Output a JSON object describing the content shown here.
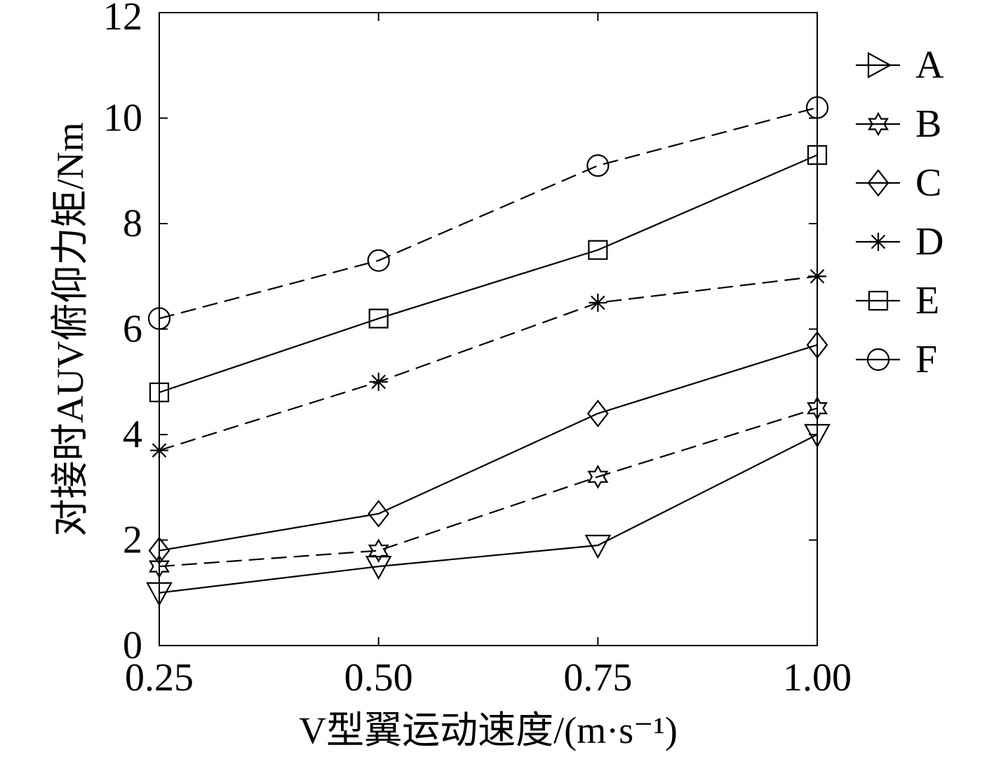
{
  "chart_data": {
    "type": "line",
    "x": [
      0.25,
      0.5,
      0.75,
      1.0
    ],
    "x_tick_labels": [
      "0.25",
      "0.50",
      "0.75",
      "1.00"
    ],
    "y_ticks": [
      0,
      2,
      4,
      6,
      8,
      10,
      12
    ],
    "y_tick_labels": [
      "0",
      "2",
      "4",
      "6",
      "8",
      "10",
      "12"
    ],
    "xlabel": "V型翼运动速度/(m·s⁻¹)",
    "ylabel": "对接时AUV俯仰力矩/Nm",
    "xlim": [
      0.25,
      1.0
    ],
    "ylim": [
      0,
      12
    ],
    "grid": false,
    "legend": "outside-right",
    "series": [
      {
        "name": "A",
        "marker": "triangle-down",
        "legend_marker": "triangle-right",
        "line": "solid",
        "color": "#000000",
        "values": [
          1.0,
          1.5,
          1.9,
          4.0
        ]
      },
      {
        "name": "B",
        "marker": "hexagram",
        "legend_marker": "hexagram",
        "line": "dashed",
        "color": "#000000",
        "values": [
          1.5,
          1.8,
          3.2,
          4.5
        ]
      },
      {
        "name": "C",
        "marker": "diamond",
        "legend_marker": "diamond",
        "line": "solid",
        "color": "#000000",
        "values": [
          1.8,
          2.5,
          4.4,
          5.7
        ]
      },
      {
        "name": "D",
        "marker": "asterisk",
        "legend_marker": "asterisk",
        "line": "dashed",
        "color": "#000000",
        "values": [
          3.7,
          5.0,
          6.5,
          7.0
        ]
      },
      {
        "name": "E",
        "marker": "square",
        "legend_marker": "square",
        "line": "solid",
        "color": "#000000",
        "values": [
          4.8,
          6.2,
          7.5,
          9.3
        ]
      },
      {
        "name": "F",
        "marker": "circle",
        "legend_marker": "circle",
        "line": "dashed",
        "color": "#000000",
        "values": [
          6.2,
          7.3,
          9.1,
          10.2
        ]
      }
    ]
  }
}
